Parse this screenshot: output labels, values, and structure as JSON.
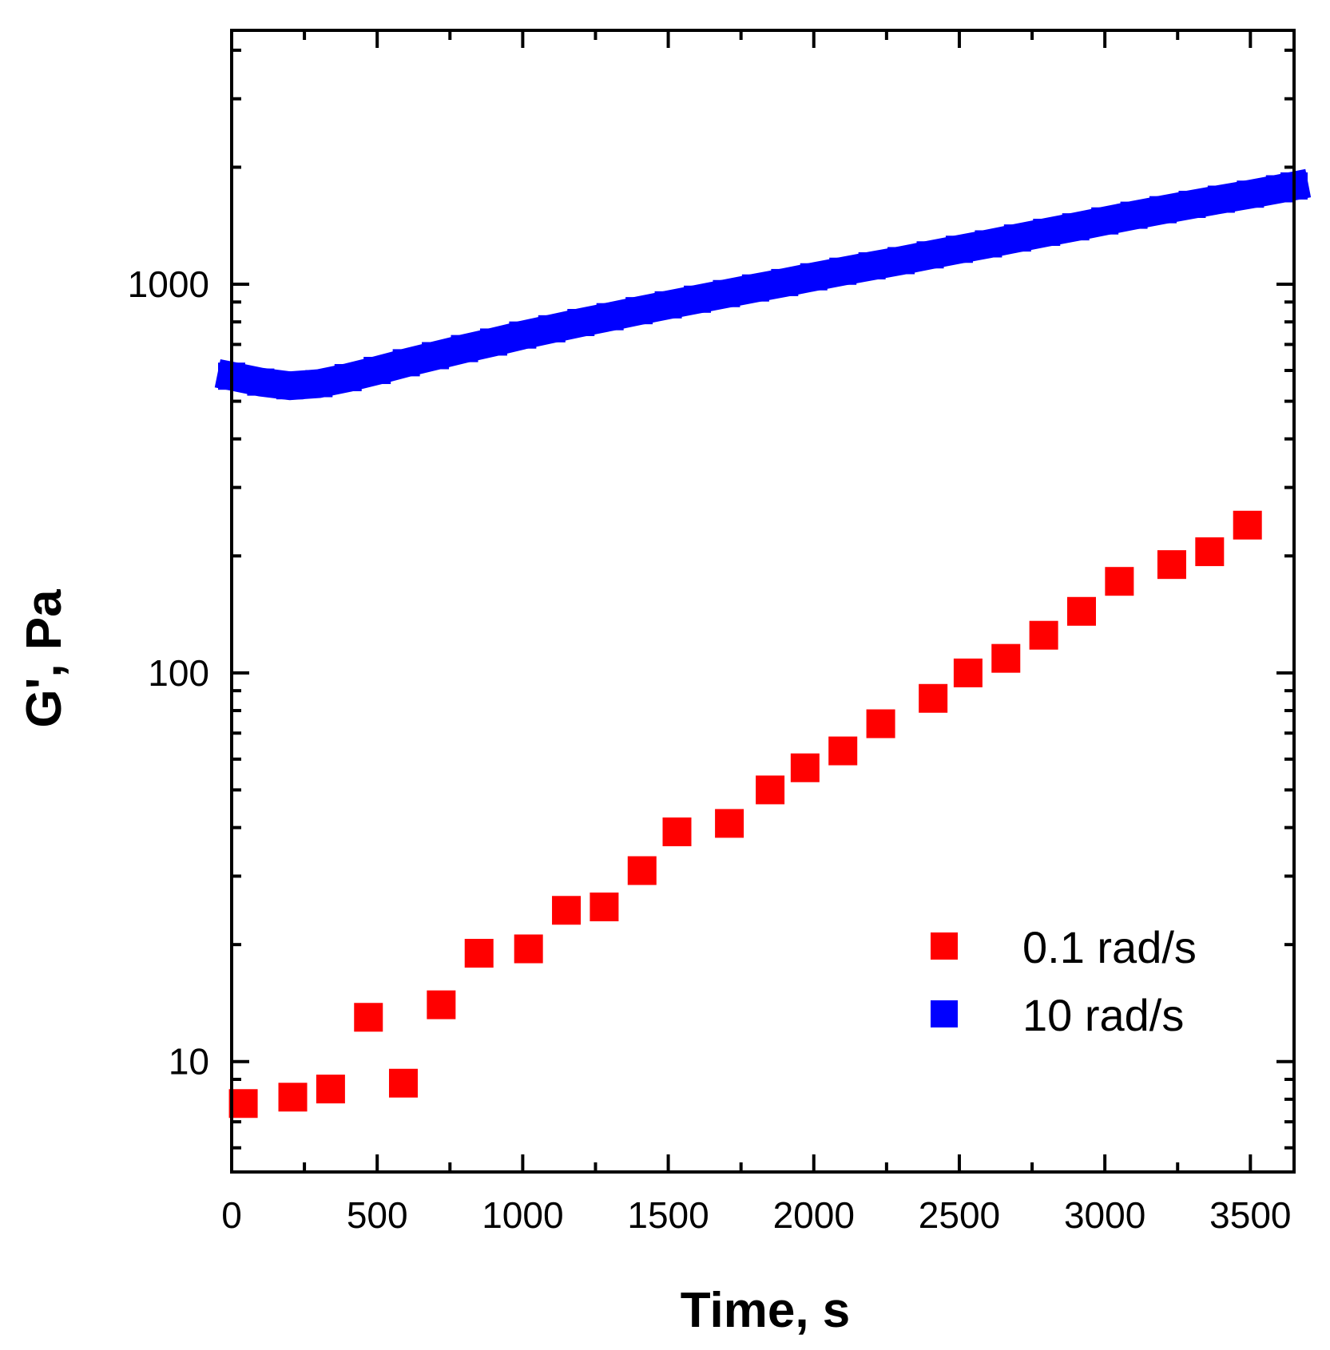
{
  "chart_data": {
    "type": "scatter",
    "title": "",
    "xlabel": "Time, s",
    "ylabel": "G', Pa",
    "xlim": [
      0,
      3650
    ],
    "ylim": [
      5.2,
      4500
    ],
    "yscale": "log",
    "x_ticks": [
      0,
      500,
      1000,
      1500,
      2000,
      2500,
      3000,
      3500
    ],
    "x_tick_labels": [
      "0",
      "500",
      "1000",
      "1500",
      "2000",
      "2500",
      "3000",
      "3500"
    ],
    "y_ticks": [
      10,
      100,
      1000
    ],
    "y_tick_labels": [
      "10",
      "100",
      "1000"
    ],
    "legend_position": "bottom-right",
    "series": [
      {
        "name": "0.1 rad/s",
        "color": "#ff0000",
        "marker": "square",
        "x": [
          40,
          210,
          340,
          470,
          590,
          720,
          850,
          1020,
          1150,
          1280,
          1410,
          1530,
          1710,
          1850,
          1970,
          2100,
          2230,
          2410,
          2530,
          2660,
          2790,
          2920,
          3050,
          3230,
          3360,
          3490
        ],
        "y": [
          7.8,
          8.1,
          8.5,
          13,
          8.8,
          14,
          19,
          19.5,
          24.5,
          25,
          31,
          39,
          41,
          50,
          57,
          63,
          74,
          86,
          100,
          109,
          125,
          144,
          172,
          190,
          205,
          240
        ]
      },
      {
        "name": "10 rad/s",
        "color": "#0000ff",
        "marker": "square",
        "x": [
          0,
          100,
          200,
          300,
          400,
          500,
          600,
          700,
          800,
          900,
          1000,
          1100,
          1200,
          1300,
          1400,
          1500,
          1600,
          1700,
          1800,
          1900,
          2000,
          2100,
          2200,
          2300,
          2400,
          2500,
          2600,
          2700,
          2800,
          2900,
          3000,
          3100,
          3200,
          3300,
          3400,
          3500,
          3600,
          3650
        ],
        "y": [
          580,
          560,
          548,
          555,
          575,
          600,
          628,
          655,
          683,
          710,
          740,
          768,
          797,
          825,
          855,
          885,
          915,
          946,
          978,
          1010,
          1045,
          1080,
          1115,
          1150,
          1190,
          1230,
          1270,
          1315,
          1360,
          1405,
          1455,
          1505,
          1555,
          1605,
          1655,
          1705,
          1760,
          1790
        ]
      }
    ]
  }
}
